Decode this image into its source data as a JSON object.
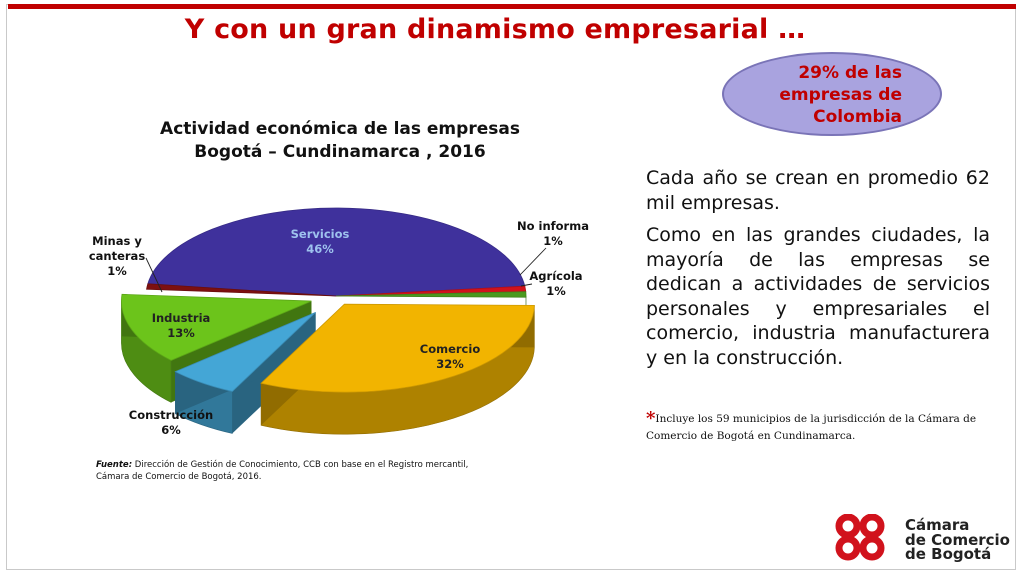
{
  "title": "Y con un gran dinamismo empresarial …",
  "stat_callout": "29%  de las\nempresas de\nColombia",
  "chart_data": {
    "type": "pie",
    "title": "Actividad económica de las empresas\nBogotá – Cundinamarca , 2016",
    "categories": [
      "Servicios",
      "No informa",
      "Agrícola",
      "Comercio",
      "Construcción",
      "Industria",
      "Minas y canteras"
    ],
    "values": [
      46,
      1,
      1,
      32,
      6,
      13,
      1
    ],
    "value_labels": [
      "46%",
      "1%",
      "1%",
      "32%",
      "6%",
      "13%",
      "1%"
    ],
    "labels": {
      "servicios": "Servicios",
      "no_informa": "No informa",
      "agricola": "Agrícola",
      "comercio": "Comercio",
      "construccion": "Construcción",
      "industria": "Industria",
      "minas": "Minas y\ncanteras"
    },
    "exploded": [
      "Comercio",
      "Construcción",
      "Industria"
    ],
    "colors": {
      "servicios": "#3f319c",
      "no_informa": "#d1121c",
      "agricola": "#4b9a1e",
      "comercio": "#f2b400",
      "construccion": "#44a6d6",
      "industria": "#6cc41b",
      "minas": "#7d1010"
    }
  },
  "source": {
    "label": "Fuente:",
    "text": " Dirección de Gestión de Conocimiento, CCB con base en el Registro mercantil, Cámara de Comercio  de Bogotá, 2016."
  },
  "body": {
    "paragraph1": "Cada año se crean en promedio 62 mil empresas.",
    "paragraph2": "Como en las grandes ciudades, la mayoría de las empresas se dedican a actividades de servicios personales y empresariales el comercio, industria manufacturera y en la construcción."
  },
  "note": {
    "star": "*",
    "text": "Incluye los 59 municipios de la jurisdicción de la Cámara de Comercio de Bogotá en Cundinamarca."
  },
  "logo": {
    "text": "Cámara\nde Comercio\nde Bogotá",
    "color": "#d1121c"
  }
}
